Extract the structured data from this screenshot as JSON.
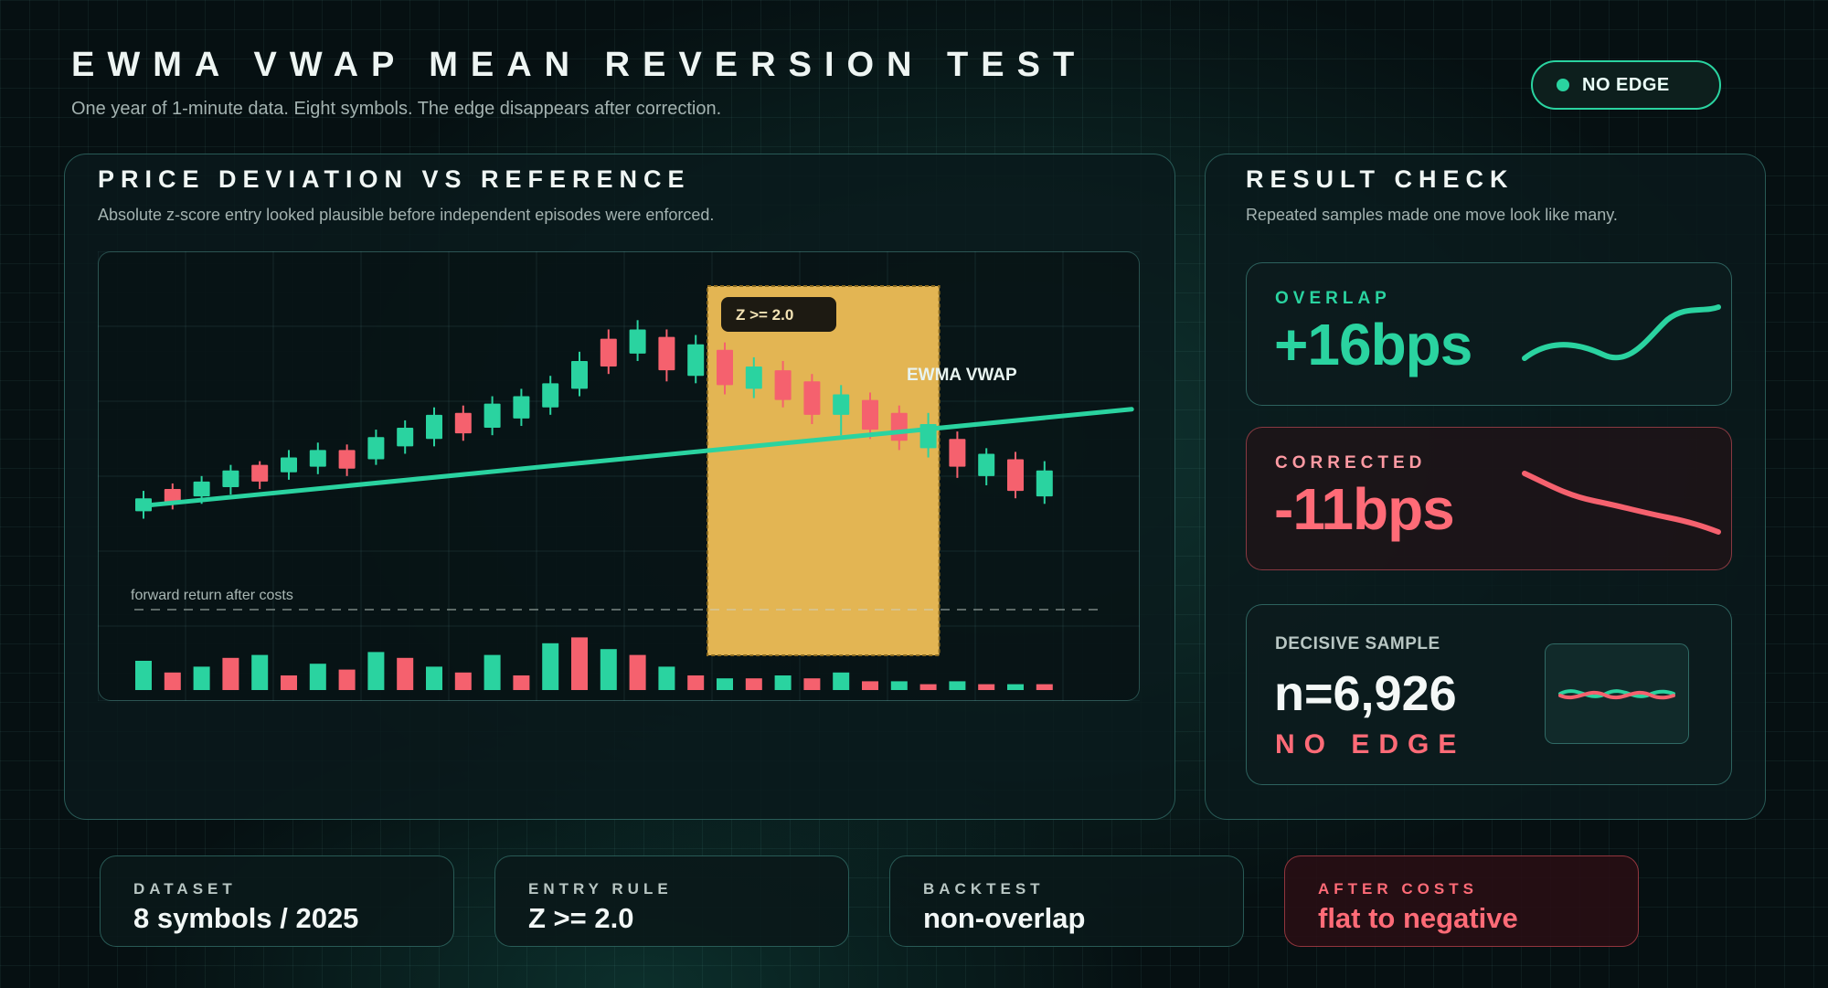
{
  "header": {
    "title": "EWMA VWAP MEAN REVERSION TEST",
    "subtitle": "One year of 1-minute data. Eight symbols. The edge disappears after correction.",
    "badge": "NO EDGE"
  },
  "colors": {
    "up": "#2ad3a0",
    "down": "#f5616e",
    "highlight": "#e3b553",
    "line": "#2ad3a0",
    "accent": "#2ad3a0",
    "negative": "#ff6b77"
  },
  "main_panel": {
    "title": "PRICE DEVIATION VS REFERENCE",
    "subtitle": "Absolute z-score entry looked plausible before independent episodes were enforced."
  },
  "chart_data": {
    "type": "candlestick",
    "line_label": "EWMA VWAP",
    "highlight_label": "Z >= 2.0",
    "lower_label": "forward return after costs",
    "price_range": [
      0,
      100
    ],
    "candles": [
      {
        "o": 20,
        "c": 27,
        "h": 31,
        "l": 16
      },
      {
        "o": 32,
        "c": 24,
        "h": 35,
        "l": 21
      },
      {
        "o": 28,
        "c": 36,
        "h": 39,
        "l": 24
      },
      {
        "o": 33,
        "c": 42,
        "h": 45,
        "l": 29
      },
      {
        "o": 45,
        "c": 36,
        "h": 47,
        "l": 32
      },
      {
        "o": 41,
        "c": 49,
        "h": 53,
        "l": 37
      },
      {
        "o": 44,
        "c": 53,
        "h": 57,
        "l": 40
      },
      {
        "o": 53,
        "c": 43,
        "h": 56,
        "l": 39
      },
      {
        "o": 48,
        "c": 60,
        "h": 64,
        "l": 45
      },
      {
        "o": 55,
        "c": 65,
        "h": 69,
        "l": 51
      },
      {
        "o": 59,
        "c": 72,
        "h": 76,
        "l": 55
      },
      {
        "o": 73,
        "c": 62,
        "h": 77,
        "l": 58
      },
      {
        "o": 65,
        "c": 78,
        "h": 82,
        "l": 61
      },
      {
        "o": 70,
        "c": 82,
        "h": 86,
        "l": 66
      },
      {
        "o": 76,
        "c": 89,
        "h": 93,
        "l": 72
      },
      {
        "o": 86,
        "c": 101,
        "h": 106,
        "l": 82
      },
      {
        "o": 113,
        "c": 98,
        "h": 118,
        "l": 94
      },
      {
        "o": 105,
        "c": 118,
        "h": 123,
        "l": 101
      },
      {
        "o": 114,
        "c": 96,
        "h": 118,
        "l": 90
      },
      {
        "o": 93,
        "c": 110,
        "h": 115,
        "l": 89
      },
      {
        "o": 107,
        "c": 88,
        "h": 111,
        "l": 83
      },
      {
        "o": 86,
        "c": 98,
        "h": 103,
        "l": 81
      },
      {
        "o": 96,
        "c": 80,
        "h": 101,
        "l": 76
      },
      {
        "o": 90,
        "c": 72,
        "h": 94,
        "l": 67
      },
      {
        "o": 72,
        "c": 83,
        "h": 88,
        "l": 61
      },
      {
        "o": 80,
        "c": 64,
        "h": 84,
        "l": 59
      },
      {
        "o": 73,
        "c": 58,
        "h": 77,
        "l": 53
      },
      {
        "o": 54,
        "c": 67,
        "h": 73,
        "l": 49
      },
      {
        "o": 59,
        "c": 44,
        "h": 63,
        "l": 38
      },
      {
        "o": 39,
        "c": 51,
        "h": 54,
        "l": 34
      },
      {
        "o": 48,
        "c": 31,
        "h": 52,
        "l": 27
      },
      {
        "o": 28,
        "c": 42,
        "h": 47,
        "l": 24
      }
    ],
    "ewma": [
      [
        0,
        23
      ],
      [
        34,
        75
      ]
    ],
    "highlight_candles": [
      20,
      27
    ],
    "returns": [
      10,
      6,
      8,
      11,
      12,
      5,
      9,
      7,
      13,
      11,
      8,
      6,
      12,
      5,
      16,
      18,
      14,
      12,
      8,
      5,
      4,
      4,
      5,
      4,
      6,
      3,
      3,
      2,
      3,
      2,
      2,
      2
    ]
  },
  "result_panel": {
    "title": "RESULT CHECK",
    "subtitle": "Repeated samples made one move look like many.",
    "overlap": {
      "label": "OVERLAP",
      "value": "+16bps"
    },
    "corrected": {
      "label": "CORRECTED",
      "value": "-11bps"
    },
    "decisive": {
      "label": "DECISIVE SAMPLE",
      "value": "n=6,926",
      "verdict": "NO EDGE"
    }
  },
  "footer": [
    {
      "label": "DATASET",
      "value": "8 symbols / 2025"
    },
    {
      "label": "ENTRY RULE",
      "value": "Z >= 2.0"
    },
    {
      "label": "BACKTEST",
      "value": "non-overlap"
    },
    {
      "label": "AFTER COSTS",
      "value": "flat to negative"
    }
  ]
}
